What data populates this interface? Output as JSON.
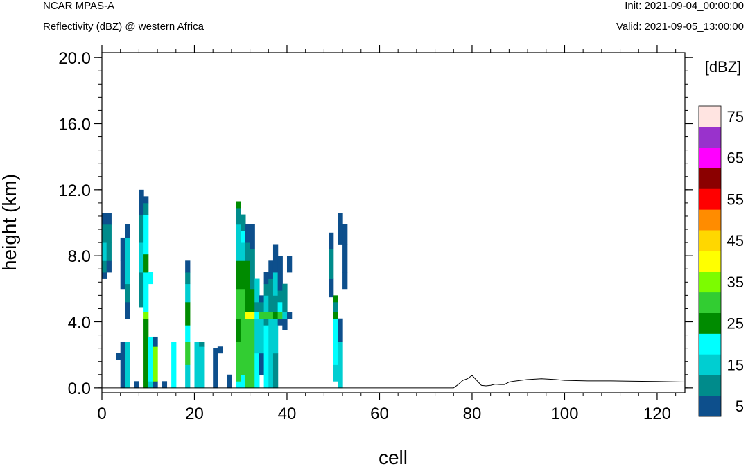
{
  "header": {
    "model": "NCAR MPAS-A",
    "field": "Reflectivity (dBZ) @ western Africa",
    "init": "Init: 2021-09-04_00:00:00",
    "valid": "Valid: 2021-09-05_13:00:00"
  },
  "chart_data": {
    "type": "heatmap",
    "title": "Reflectivity (dBZ) @ western Africa",
    "xlabel": "cell",
    "ylabel": "height (km)",
    "xlim": [
      0,
      126
    ],
    "ylim": [
      -0.3,
      20.3
    ],
    "x_ticks": [
      0,
      20,
      40,
      60,
      80,
      100,
      120
    ],
    "x_tick_labels": [
      "0",
      "20",
      "40",
      "60",
      "80",
      "100",
      "120"
    ],
    "y_ticks": [
      0,
      4,
      8,
      12,
      16,
      20
    ],
    "y_tick_labels": [
      "0.0",
      "4.0",
      "8.0",
      "12.0",
      "16.0",
      "20.0"
    ],
    "colorbar": {
      "units": "[dBZ]",
      "levels": [
        5,
        10,
        15,
        20,
        25,
        30,
        35,
        40,
        45,
        50,
        55,
        60,
        65,
        70,
        75
      ],
      "labels": [
        "5",
        "15",
        "25",
        "35",
        "45",
        "55",
        "65",
        "75"
      ],
      "colors": [
        "#0d4f8c",
        "#008b8b",
        "#00ced1",
        "#00ffff",
        "#008b00",
        "#32cd32",
        "#7cfc00",
        "#ffff00",
        "#ffd700",
        "#ff8c00",
        "#ff0000",
        "#8b0000",
        "#ff00ff",
        "#9932cc",
        "#ffe4e1"
      ]
    },
    "cell_height_km": 0.35,
    "columns": [
      {
        "x": 0,
        "runs": [
          [
            6.6,
            7.0,
            5
          ],
          [
            7.0,
            7.7,
            10
          ],
          [
            7.7,
            8.8,
            15
          ],
          [
            8.8,
            9.9,
            10
          ],
          [
            9.9,
            10.6,
            5
          ]
        ]
      },
      {
        "x": 1,
        "runs": [
          [
            7.0,
            7.7,
            5
          ],
          [
            7.7,
            8.8,
            10
          ],
          [
            8.8,
            9.9,
            10
          ],
          [
            9.9,
            10.6,
            5
          ]
        ]
      },
      {
        "x": 3,
        "runs": [
          [
            1.7,
            2.1,
            5
          ]
        ]
      },
      {
        "x": 4,
        "runs": [
          [
            0.0,
            2.1,
            5
          ],
          [
            2.1,
            2.8,
            5
          ],
          [
            6.0,
            7.7,
            5
          ],
          [
            7.7,
            9.1,
            5
          ]
        ]
      },
      {
        "x": 5,
        "runs": [
          [
            0.0,
            2.8,
            15
          ],
          [
            4.2,
            5.2,
            5
          ],
          [
            5.2,
            6.3,
            10
          ],
          [
            6.3,
            9.1,
            15
          ],
          [
            9.1,
            9.9,
            5
          ]
        ]
      },
      {
        "x": 7,
        "runs": [
          [
            0.0,
            0.4,
            5
          ]
        ]
      },
      {
        "x": 8,
        "runs": [
          [
            4.9,
            7.0,
            10
          ],
          [
            7.0,
            8.8,
            15
          ],
          [
            8.8,
            10.5,
            10
          ],
          [
            10.5,
            12.0,
            5
          ]
        ]
      },
      {
        "x": 9,
        "runs": [
          [
            0.0,
            0.4,
            25
          ],
          [
            0.4,
            4.2,
            25
          ],
          [
            4.2,
            4.6,
            35
          ],
          [
            4.6,
            7.0,
            20
          ],
          [
            7.0,
            8.1,
            25
          ],
          [
            8.1,
            10.5,
            20
          ],
          [
            10.5,
            11.2,
            10
          ],
          [
            11.2,
            11.6,
            5
          ]
        ]
      },
      {
        "x": 10,
        "runs": [
          [
            0.0,
            0.4,
            15
          ],
          [
            0.4,
            3.1,
            20
          ],
          [
            6.3,
            7.0,
            20
          ]
        ]
      },
      {
        "x": 11,
        "runs": [
          [
            0.0,
            0.4,
            5
          ],
          [
            0.4,
            2.5,
            35
          ],
          [
            2.5,
            3.1,
            5
          ]
        ]
      },
      {
        "x": 13,
        "runs": [
          [
            0.0,
            0.4,
            5
          ]
        ]
      },
      {
        "x": 15,
        "runs": [
          [
            0.0,
            2.8,
            20
          ]
        ]
      },
      {
        "x": 18,
        "runs": [
          [
            0.0,
            1.4,
            15
          ],
          [
            1.4,
            2.8,
            30
          ],
          [
            2.8,
            3.8,
            20
          ],
          [
            3.8,
            5.2,
            25
          ],
          [
            5.2,
            6.3,
            15
          ],
          [
            6.3,
            7.0,
            10
          ],
          [
            7.0,
            7.7,
            5
          ]
        ]
      },
      {
        "x": 20,
        "runs": [
          [
            0.0,
            2.8,
            15
          ]
        ]
      },
      {
        "x": 21,
        "runs": [
          [
            0.0,
            2.5,
            15
          ],
          [
            2.5,
            2.8,
            10
          ]
        ]
      },
      {
        "x": 24,
        "runs": [
          [
            0.0,
            2.4,
            5
          ]
        ]
      },
      {
        "x": 25,
        "runs": [
          [
            2.1,
            2.5,
            5
          ]
        ]
      },
      {
        "x": 27,
        "runs": [
          [
            0.0,
            0.8,
            5
          ]
        ]
      },
      {
        "x": 29,
        "runs": [
          [
            0.0,
            0.4,
            20
          ],
          [
            0.4,
            2.8,
            30
          ],
          [
            2.8,
            4.2,
            25
          ],
          [
            4.2,
            6.0,
            30
          ],
          [
            6.0,
            7.7,
            25
          ],
          [
            7.7,
            8.8,
            15
          ],
          [
            8.8,
            9.9,
            15
          ],
          [
            9.9,
            10.9,
            10
          ],
          [
            10.9,
            11.3,
            25
          ]
        ]
      },
      {
        "x": 30,
        "runs": [
          [
            0.0,
            0.8,
            20
          ],
          [
            0.8,
            2.8,
            30
          ],
          [
            2.8,
            4.2,
            30
          ],
          [
            4.2,
            4.6,
            30
          ],
          [
            4.6,
            6.0,
            30
          ],
          [
            6.0,
            7.7,
            25
          ],
          [
            7.7,
            8.8,
            15
          ],
          [
            8.8,
            9.5,
            20
          ],
          [
            9.5,
            10.5,
            10
          ]
        ]
      },
      {
        "x": 31,
        "runs": [
          [
            0.0,
            4.2,
            30
          ],
          [
            4.2,
            4.6,
            40
          ],
          [
            4.6,
            6.0,
            25
          ],
          [
            6.0,
            7.7,
            25
          ],
          [
            7.7,
            8.8,
            10
          ],
          [
            8.8,
            9.9,
            5
          ]
        ]
      },
      {
        "x": 32,
        "runs": [
          [
            0.0,
            4.2,
            30
          ],
          [
            4.2,
            4.6,
            40
          ],
          [
            4.6,
            6.0,
            25
          ],
          [
            6.0,
            8.4,
            10
          ],
          [
            8.4,
            9.9,
            5
          ]
        ]
      },
      {
        "x": 33,
        "runs": [
          [
            0.0,
            2.1,
            20
          ],
          [
            2.1,
            4.2,
            15
          ],
          [
            4.2,
            4.6,
            20
          ],
          [
            4.6,
            5.2,
            10
          ],
          [
            5.2,
            6.6,
            15
          ]
        ]
      },
      {
        "x": 34,
        "runs": [
          [
            0.8,
            2.1,
            5
          ],
          [
            2.1,
            4.2,
            15
          ],
          [
            4.2,
            4.6,
            30
          ],
          [
            4.6,
            5.2,
            10
          ],
          [
            5.2,
            5.6,
            5
          ]
        ]
      },
      {
        "x": 35,
        "runs": [
          [
            0.0,
            3.8,
            20
          ],
          [
            3.8,
            4.2,
            10
          ],
          [
            4.2,
            4.6,
            30
          ],
          [
            4.6,
            5.6,
            15
          ],
          [
            5.6,
            6.3,
            10
          ],
          [
            6.3,
            7.0,
            5
          ]
        ]
      },
      {
        "x": 36,
        "runs": [
          [
            0.0,
            2.8,
            15
          ],
          [
            2.8,
            4.2,
            15
          ],
          [
            4.2,
            4.6,
            30
          ],
          [
            4.6,
            6.6,
            10
          ],
          [
            6.6,
            7.7,
            5
          ]
        ]
      },
      {
        "x": 37,
        "runs": [
          [
            0.0,
            2.1,
            10
          ],
          [
            2.1,
            3.8,
            15
          ],
          [
            3.8,
            4.2,
            15
          ],
          [
            4.2,
            4.6,
            25
          ],
          [
            4.6,
            5.6,
            10
          ],
          [
            5.6,
            7.0,
            15
          ],
          [
            7.0,
            8.7,
            5
          ]
        ]
      },
      {
        "x": 38,
        "runs": [
          [
            3.8,
            4.2,
            5
          ],
          [
            4.2,
            4.6,
            30
          ],
          [
            4.6,
            5.2,
            20
          ],
          [
            5.2,
            5.9,
            10
          ],
          [
            5.9,
            8.0,
            5
          ]
        ]
      },
      {
        "x": 39,
        "runs": [
          [
            3.5,
            4.2,
            5
          ],
          [
            4.2,
            4.6,
            15
          ],
          [
            4.6,
            6.3,
            10
          ]
        ]
      },
      {
        "x": 40,
        "runs": [
          [
            4.2,
            4.6,
            5
          ],
          [
            7.0,
            8.0,
            5
          ]
        ]
      },
      {
        "x": 49,
        "runs": [
          [
            5.5,
            6.6,
            5
          ],
          [
            6.6,
            8.4,
            10
          ],
          [
            8.4,
            9.4,
            5
          ]
        ]
      },
      {
        "x": 50,
        "runs": [
          [
            0.4,
            1.4,
            15
          ],
          [
            1.4,
            4.2,
            20
          ],
          [
            4.2,
            4.6,
            25
          ],
          [
            4.6,
            5.2,
            10
          ],
          [
            5.2,
            5.6,
            25
          ]
        ]
      },
      {
        "x": 51,
        "runs": [
          [
            0.0,
            2.8,
            15
          ],
          [
            2.8,
            3.5,
            5
          ],
          [
            3.5,
            4.2,
            5
          ],
          [
            8.7,
            9.5,
            5
          ],
          [
            9.5,
            10.6,
            5
          ]
        ]
      },
      {
        "x": 52,
        "runs": [
          [
            6.0,
            7.0,
            5
          ],
          [
            7.0,
            8.7,
            5
          ],
          [
            8.7,
            9.9,
            5
          ]
        ]
      }
    ],
    "terrain": [
      [
        0,
        0.0
      ],
      [
        76,
        0.0
      ],
      [
        77,
        0.2
      ],
      [
        78,
        0.45
      ],
      [
        79,
        0.55
      ],
      [
        80,
        0.75
      ],
      [
        81,
        0.45
      ],
      [
        82,
        0.15
      ],
      [
        83,
        0.12
      ],
      [
        84,
        0.15
      ],
      [
        85,
        0.22
      ],
      [
        86,
        0.2
      ],
      [
        87,
        0.2
      ],
      [
        88,
        0.35
      ],
      [
        89,
        0.4
      ],
      [
        92,
        0.5
      ],
      [
        95,
        0.55
      ],
      [
        98,
        0.5
      ],
      [
        100,
        0.45
      ],
      [
        105,
        0.42
      ],
      [
        110,
        0.42
      ],
      [
        115,
        0.4
      ],
      [
        120,
        0.38
      ],
      [
        126,
        0.35
      ]
    ]
  }
}
